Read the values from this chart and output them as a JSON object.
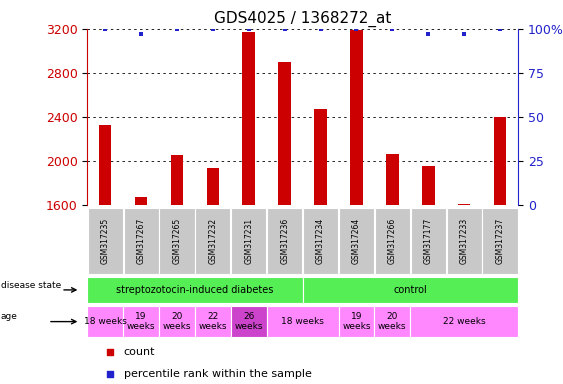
{
  "title": "GDS4025 / 1368272_at",
  "samples": [
    "GSM317235",
    "GSM317267",
    "GSM317265",
    "GSM317232",
    "GSM317231",
    "GSM317236",
    "GSM317234",
    "GSM317264",
    "GSM317266",
    "GSM317177",
    "GSM317233",
    "GSM317237"
  ],
  "counts": [
    2330,
    1680,
    2060,
    1940,
    3170,
    2900,
    2470,
    3190,
    2070,
    1960,
    1610,
    2400
  ],
  "percentile_ranks": [
    100,
    97,
    100,
    100,
    100,
    100,
    100,
    100,
    100,
    97,
    97,
    100
  ],
  "ylim_left": [
    1600,
    3200
  ],
  "ylim_right": [
    0,
    100
  ],
  "yticks_left": [
    1600,
    2000,
    2400,
    2800,
    3200
  ],
  "yticks_right": [
    0,
    25,
    50,
    75,
    100
  ],
  "bar_color": "#cc0000",
  "percentile_color": "#2222cc",
  "grid_color": "#000000",
  "sample_bg": "#c8c8c8",
  "disease_color": "#55ee55",
  "age_color_normal": "#ff88ff",
  "age_color_dark": "#cc44cc",
  "tick_label_color": "#cc0000",
  "right_tick_color": "#2222cc",
  "title_fontsize": 11,
  "axis_fontsize": 9,
  "small_fontsize": 7,
  "legend_fontsize": 8,
  "disease_groups": [
    {
      "label": "streptozotocin-induced diabetes",
      "start": 0,
      "end": 6
    },
    {
      "label": "control",
      "start": 6,
      "end": 12
    }
  ],
  "age_groups": [
    {
      "label": "18 weeks",
      "start": 0,
      "end": 1,
      "dark": false
    },
    {
      "label": "19\nweeks",
      "start": 1,
      "end": 2,
      "dark": false
    },
    {
      "label": "20\nweeks",
      "start": 2,
      "end": 3,
      "dark": false
    },
    {
      "label": "22\nweeks",
      "start": 3,
      "end": 4,
      "dark": false
    },
    {
      "label": "26\nweeks",
      "start": 4,
      "end": 5,
      "dark": true
    },
    {
      "label": "18 weeks",
      "start": 5,
      "end": 7,
      "dark": false
    },
    {
      "label": "19\nweeks",
      "start": 7,
      "end": 8,
      "dark": false
    },
    {
      "label": "20\nweeks",
      "start": 8,
      "end": 9,
      "dark": false
    },
    {
      "label": "22 weeks",
      "start": 9,
      "end": 12,
      "dark": false
    }
  ]
}
